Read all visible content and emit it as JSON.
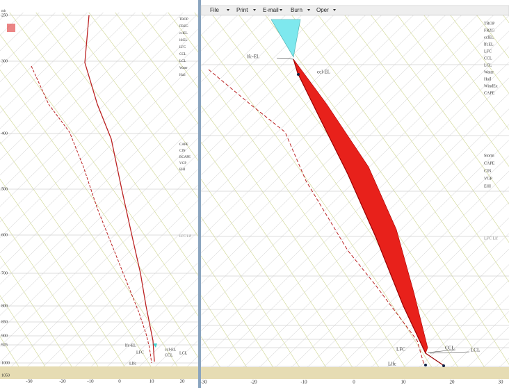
{
  "menu": {
    "items": [
      "File",
      "Print",
      "E-mail",
      "Burn",
      "Oper"
    ]
  },
  "left_panel": {
    "unit": "mb",
    "pressure_labels": [
      "250",
      "300",
      "400",
      "500",
      "600",
      "700",
      "800",
      "850",
      "900",
      "925",
      "1000",
      "1050"
    ],
    "temp_labels": [
      "-30",
      "-20",
      "-10",
      "0",
      "10",
      "20"
    ],
    "annotations": [
      "lfc-EL",
      "ccl-EL",
      "LFC",
      "LCL",
      "CCL",
      "Llfc"
    ],
    "sidebar": [
      "TROP",
      "FRZG",
      "cclEL",
      "lfcEL",
      "LFC",
      "CCL",
      "LCL",
      "Water",
      "Hail",
      "CAPE",
      "CIN",
      "BCAPE",
      "VGP",
      "EHI"
    ],
    "note": "LFC Lif"
  },
  "right_panel": {
    "temp_labels": [
      "-30",
      "-20",
      "-10",
      "0",
      "10",
      "20",
      "30"
    ],
    "annotations": [
      "lfc-EL",
      "ccl-EL",
      "LFC",
      "CCL",
      "LCL",
      "Llfc"
    ],
    "sidebar": [
      "TROP",
      "FRZG",
      "cclEL",
      "lfcEL",
      "LFC",
      "CCL",
      "LCL",
      "Water",
      "Hail",
      "WindEx",
      "CAPE",
      "Storm",
      "CAPE",
      "CIN",
      "VGP",
      "EHI"
    ],
    "note": "LFC Lif"
  }
}
